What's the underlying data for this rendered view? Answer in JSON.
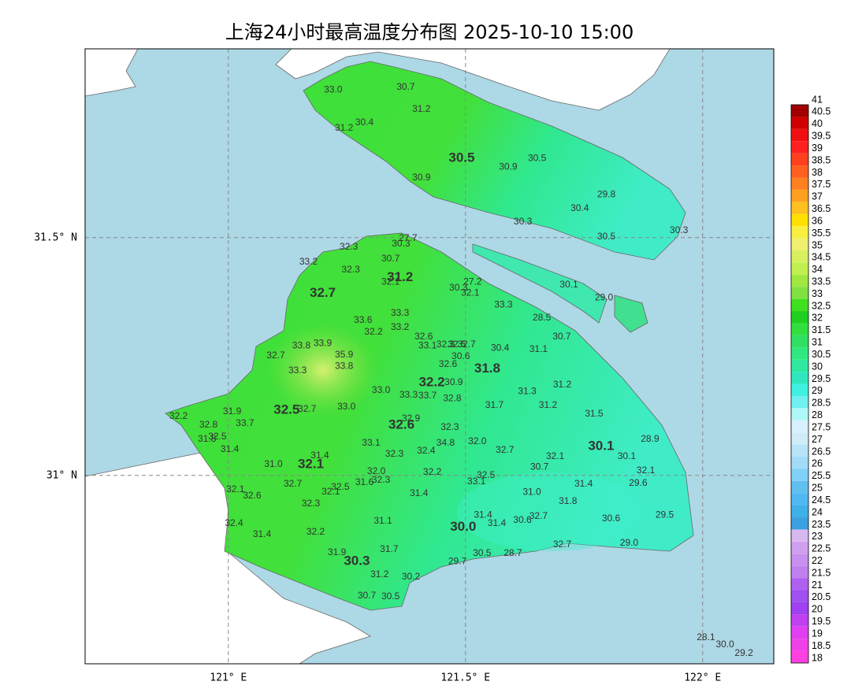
{
  "chart_data": {
    "type": "map",
    "title": "上海24小时最高温度分布图 2025-10-10 15:00",
    "xlim": [
      120.698,
      122.15
    ],
    "ylim": [
      30.604,
      31.897
    ],
    "xticks": [
      {
        "value": 121,
        "label": "121° E"
      },
      {
        "value": 121.5,
        "label": "121.5° E"
      },
      {
        "value": 122,
        "label": "122° E"
      }
    ],
    "yticks": [
      {
        "value": 31,
        "label": "31° N"
      },
      {
        "value": 31.5,
        "label": "31.5° N"
      }
    ],
    "grid": true,
    "colorbar": {
      "levels": [
        18,
        18.5,
        19,
        19.5,
        20,
        20.5,
        21,
        21.5,
        22,
        22.5,
        23,
        23.5,
        24,
        24.5,
        25,
        25.5,
        26,
        26.5,
        27,
        27.5,
        28,
        28.5,
        29,
        29.5,
        30,
        30.5,
        31,
        31.5,
        32,
        32.5,
        33,
        33.5,
        34,
        34.5,
        35,
        35.5,
        36,
        36.5,
        37,
        37.5,
        38,
        38.5,
        39,
        39.5,
        40,
        40.5,
        41
      ],
      "colors": [
        "#ff40e0",
        "#f040e8",
        "#e040f0",
        "#c040f0",
        "#a040f0",
        "#a050f0",
        "#b060f0",
        "#c080f0",
        "#c890f0",
        "#d0a0f0",
        "#d8b8f0",
        "#3aa0e0",
        "#40b0e8",
        "#50b8f0",
        "#60c0f0",
        "#80d0f8",
        "#a0dcf8",
        "#b8e4f8",
        "#d0ecf8",
        "#d8f0ff",
        "#b0f8f8",
        "#70f0f0",
        "#40f0e0",
        "#30e8c0",
        "#30e8a0",
        "#30e880",
        "#30e060",
        "#30e040",
        "#20d020",
        "#40e020",
        "#80e040",
        "#a0e840",
        "#c0f050",
        "#d8f060",
        "#f0f070",
        "#f8f040",
        "#ffe000",
        "#ffc020",
        "#ffa020",
        "#ff8020",
        "#ff6020",
        "#ff4020",
        "#ff2020",
        "#f01010",
        "#d00000",
        "#a00000"
      ]
    },
    "stations": [
      {
        "lon": 121.221,
        "lat": 31.81,
        "label": "33.0"
      },
      {
        "lon": 121.374,
        "lat": 31.816,
        "label": "30.7"
      },
      {
        "lon": 121.407,
        "lat": 31.77,
        "label": "31.2"
      },
      {
        "lon": 121.244,
        "lat": 31.73,
        "label": "31.2"
      },
      {
        "lon": 121.287,
        "lat": 31.742,
        "label": "30.4"
      },
      {
        "lon": 121.492,
        "lat": 31.667,
        "label": "30.5",
        "emphasis": true
      },
      {
        "lon": 121.59,
        "lat": 31.648,
        "label": "30.9"
      },
      {
        "lon": 121.651,
        "lat": 31.666,
        "label": "30.5"
      },
      {
        "lon": 121.407,
        "lat": 31.626,
        "label": "30.9"
      },
      {
        "lon": 121.797,
        "lat": 31.59,
        "label": "29.8"
      },
      {
        "lon": 121.741,
        "lat": 31.561,
        "label": "30.4"
      },
      {
        "lon": 121.621,
        "lat": 31.533,
        "label": "30.3"
      },
      {
        "lon": 121.797,
        "lat": 31.502,
        "label": "30.5"
      },
      {
        "lon": 121.95,
        "lat": 31.515,
        "label": "30.3"
      },
      {
        "lon": 121.379,
        "lat": 31.498,
        "label": "27.7"
      },
      {
        "lon": 121.364,
        "lat": 31.487,
        "label": "30.3"
      },
      {
        "lon": 121.254,
        "lat": 31.48,
        "label": "32.3"
      },
      {
        "lon": 121.169,
        "lat": 31.449,
        "label": "33.2"
      },
      {
        "lon": 121.342,
        "lat": 31.455,
        "label": "30.7"
      },
      {
        "lon": 121.258,
        "lat": 31.432,
        "label": "32.3"
      },
      {
        "lon": 121.362,
        "lat": 31.416,
        "label": "31.2",
        "emphasis": true
      },
      {
        "lon": 121.342,
        "lat": 31.406,
        "label": "32.1"
      },
      {
        "lon": 121.485,
        "lat": 31.394,
        "label": "30.3"
      },
      {
        "lon": 121.515,
        "lat": 31.406,
        "label": "27.2"
      },
      {
        "lon": 121.51,
        "lat": 31.383,
        "label": "32.1"
      },
      {
        "lon": 121.718,
        "lat": 31.401,
        "label": "30.1"
      },
      {
        "lon": 121.792,
        "lat": 31.373,
        "label": "29.0"
      },
      {
        "lon": 121.199,
        "lat": 31.383,
        "label": "32.7",
        "emphasis": true
      },
      {
        "lon": 121.58,
        "lat": 31.358,
        "label": "33.3"
      },
      {
        "lon": 121.362,
        "lat": 31.341,
        "label": "33.3"
      },
      {
        "lon": 121.284,
        "lat": 31.326,
        "label": "33.6"
      },
      {
        "lon": 121.661,
        "lat": 31.331,
        "label": "28.5"
      },
      {
        "lon": 121.362,
        "lat": 31.311,
        "label": "33.2"
      },
      {
        "lon": 121.306,
        "lat": 31.301,
        "label": "32.2"
      },
      {
        "lon": 121.703,
        "lat": 31.291,
        "label": "30.7"
      },
      {
        "lon": 121.412,
        "lat": 31.291,
        "label": "32.6"
      },
      {
        "lon": 121.154,
        "lat": 31.272,
        "label": "33.8"
      },
      {
        "lon": 121.199,
        "lat": 31.277,
        "label": "33.9"
      },
      {
        "lon": 121.42,
        "lat": 31.272,
        "label": "33.1"
      },
      {
        "lon": 121.458,
        "lat": 31.275,
        "label": "32.3"
      },
      {
        "lon": 121.482,
        "lat": 31.275,
        "label": "32.5"
      },
      {
        "lon": 121.502,
        "lat": 31.275,
        "label": "32.7"
      },
      {
        "lon": 121.573,
        "lat": 31.267,
        "label": "30.4"
      },
      {
        "lon": 121.654,
        "lat": 31.265,
        "label": "31.1"
      },
      {
        "lon": 121.244,
        "lat": 31.253,
        "label": "35.9"
      },
      {
        "lon": 121.1,
        "lat": 31.252,
        "label": "32.7"
      },
      {
        "lon": 121.49,
        "lat": 31.25,
        "label": "30.6"
      },
      {
        "lon": 121.463,
        "lat": 31.233,
        "label": "32.6"
      },
      {
        "lon": 121.244,
        "lat": 31.229,
        "label": "33.8"
      },
      {
        "lon": 121.546,
        "lat": 31.224,
        "label": "31.8",
        "emphasis": true
      },
      {
        "lon": 121.146,
        "lat": 31.22,
        "label": "33.3"
      },
      {
        "lon": 121.475,
        "lat": 31.195,
        "label": "30.9"
      },
      {
        "lon": 121.429,
        "lat": 31.195,
        "label": "32.2",
        "emphasis": true
      },
      {
        "lon": 121.63,
        "lat": 31.176,
        "label": "31.3"
      },
      {
        "lon": 121.704,
        "lat": 31.19,
        "label": "31.2"
      },
      {
        "lon": 121.322,
        "lat": 31.179,
        "label": "33.0"
      },
      {
        "lon": 121.38,
        "lat": 31.169,
        "label": "33.3"
      },
      {
        "lon": 121.42,
        "lat": 31.167,
        "label": "33.7"
      },
      {
        "lon": 121.472,
        "lat": 31.161,
        "label": "32.8"
      },
      {
        "lon": 121.561,
        "lat": 31.147,
        "label": "31.7"
      },
      {
        "lon": 121.674,
        "lat": 31.147,
        "label": "31.2"
      },
      {
        "lon": 121.249,
        "lat": 31.144,
        "label": "33.0"
      },
      {
        "lon": 121.008,
        "lat": 31.134,
        "label": "31.9"
      },
      {
        "lon": 121.123,
        "lat": 31.137,
        "label": "32.5",
        "emphasis": true
      },
      {
        "lon": 121.166,
        "lat": 31.139,
        "label": "32.7"
      },
      {
        "lon": 121.771,
        "lat": 31.129,
        "label": "31.5"
      },
      {
        "lon": 120.895,
        "lat": 31.124,
        "label": "32.2"
      },
      {
        "lon": 121.385,
        "lat": 31.119,
        "label": "32.9"
      },
      {
        "lon": 121.035,
        "lat": 31.109,
        "label": "33.7"
      },
      {
        "lon": 120.958,
        "lat": 31.106,
        "label": "32.8"
      },
      {
        "lon": 121.365,
        "lat": 31.106,
        "label": "32.6",
        "emphasis": true
      },
      {
        "lon": 121.467,
        "lat": 31.101,
        "label": "32.3"
      },
      {
        "lon": 120.977,
        "lat": 31.081,
        "label": "32.5"
      },
      {
        "lon": 120.955,
        "lat": 31.076,
        "label": "31.8"
      },
      {
        "lon": 121.889,
        "lat": 31.076,
        "label": "28.9"
      },
      {
        "lon": 121.301,
        "lat": 31.068,
        "label": "33.1"
      },
      {
        "lon": 121.525,
        "lat": 31.071,
        "label": "32.0"
      },
      {
        "lon": 121.458,
        "lat": 31.068,
        "label": "34.8"
      },
      {
        "lon": 121.786,
        "lat": 31.061,
        "label": "30.1",
        "emphasis": true
      },
      {
        "lon": 121.417,
        "lat": 31.051,
        "label": "32.4"
      },
      {
        "lon": 121.583,
        "lat": 31.053,
        "label": "32.7"
      },
      {
        "lon": 121.003,
        "lat": 31.055,
        "label": "31.4"
      },
      {
        "lon": 121.35,
        "lat": 31.045,
        "label": "32.3"
      },
      {
        "lon": 121.193,
        "lat": 31.041,
        "label": "31.4"
      },
      {
        "lon": 121.689,
        "lat": 31.04,
        "label": "32.1"
      },
      {
        "lon": 121.84,
        "lat": 31.04,
        "label": "30.1"
      },
      {
        "lon": 121.095,
        "lat": 31.023,
        "label": "31.0"
      },
      {
        "lon": 121.174,
        "lat": 31.023,
        "label": "32.1",
        "emphasis": true
      },
      {
        "lon": 121.656,
        "lat": 31.017,
        "label": "30.7"
      },
      {
        "lon": 121.88,
        "lat": 31.01,
        "label": "32.1"
      },
      {
        "lon": 121.312,
        "lat": 31.008,
        "label": "32.0"
      },
      {
        "lon": 121.43,
        "lat": 31.007,
        "label": "32.2"
      },
      {
        "lon": 121.543,
        "lat": 31.0,
        "label": "32.5"
      },
      {
        "lon": 121.322,
        "lat": 30.99,
        "label": "32.3"
      },
      {
        "lon": 121.523,
        "lat": 30.987,
        "label": "33.1"
      },
      {
        "lon": 121.287,
        "lat": 30.985,
        "label": "31.6"
      },
      {
        "lon": 121.136,
        "lat": 30.982,
        "label": "32.7"
      },
      {
        "lon": 121.236,
        "lat": 30.975,
        "label": "32.5"
      },
      {
        "lon": 121.216,
        "lat": 30.965,
        "label": "32.1"
      },
      {
        "lon": 121.749,
        "lat": 30.982,
        "label": "31.4"
      },
      {
        "lon": 121.864,
        "lat": 30.983,
        "label": "29.6"
      },
      {
        "lon": 121.015,
        "lat": 30.97,
        "label": "32.1"
      },
      {
        "lon": 121.05,
        "lat": 30.957,
        "label": "32.6"
      },
      {
        "lon": 121.402,
        "lat": 30.962,
        "label": "31.4"
      },
      {
        "lon": 121.64,
        "lat": 30.964,
        "label": "31.0"
      },
      {
        "lon": 121.716,
        "lat": 30.945,
        "label": "31.8"
      },
      {
        "lon": 121.174,
        "lat": 30.94,
        "label": "32.3"
      },
      {
        "lon": 121.537,
        "lat": 30.916,
        "label": "31.4"
      },
      {
        "lon": 121.92,
        "lat": 30.916,
        "label": "29.5"
      },
      {
        "lon": 121.654,
        "lat": 30.914,
        "label": "32.7"
      },
      {
        "lon": 121.807,
        "lat": 30.909,
        "label": "30.6"
      },
      {
        "lon": 121.62,
        "lat": 30.906,
        "label": "30.6"
      },
      {
        "lon": 121.326,
        "lat": 30.904,
        "label": "31.1"
      },
      {
        "lon": 121.566,
        "lat": 30.899,
        "label": "31.4"
      },
      {
        "lon": 121.012,
        "lat": 30.899,
        "label": "32.4"
      },
      {
        "lon": 121.495,
        "lat": 30.891,
        "label": "30.0",
        "emphasis": true
      },
      {
        "lon": 121.184,
        "lat": 30.881,
        "label": "32.2"
      },
      {
        "lon": 121.071,
        "lat": 30.876,
        "label": "31.4"
      },
      {
        "lon": 121.845,
        "lat": 30.858,
        "label": "29.0"
      },
      {
        "lon": 121.704,
        "lat": 30.854,
        "label": "32.7"
      },
      {
        "lon": 121.339,
        "lat": 30.844,
        "label": "31.7"
      },
      {
        "lon": 121.229,
        "lat": 30.838,
        "label": "31.9"
      },
      {
        "lon": 121.535,
        "lat": 30.836,
        "label": "30.5"
      },
      {
        "lon": 121.6,
        "lat": 30.836,
        "label": "28.7"
      },
      {
        "lon": 121.271,
        "lat": 30.819,
        "label": "30.3",
        "emphasis": true
      },
      {
        "lon": 121.483,
        "lat": 30.819,
        "label": "29.7"
      },
      {
        "lon": 121.319,
        "lat": 30.791,
        "label": "31.2"
      },
      {
        "lon": 121.385,
        "lat": 30.786,
        "label": "30.2"
      },
      {
        "lon": 121.292,
        "lat": 30.747,
        "label": "30.7"
      },
      {
        "lon": 121.342,
        "lat": 30.745,
        "label": "30.5"
      },
      {
        "lon": 122.007,
        "lat": 30.659,
        "label": "28.1"
      },
      {
        "lon": 122.047,
        "lat": 30.644,
        "label": "30.0"
      },
      {
        "lon": 122.087,
        "lat": 30.626,
        "label": "29.2"
      }
    ]
  }
}
